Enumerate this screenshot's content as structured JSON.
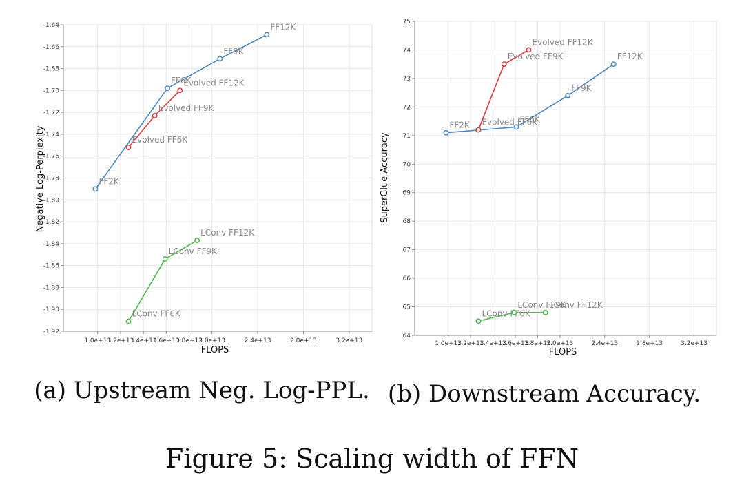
{
  "figure_caption": "Figure 5: Scaling width of FFN",
  "chart_data": [
    {
      "type": "line",
      "caption": "(a) Upstream Neg. Log-PPL.",
      "xlabel": "FLOPS",
      "ylabel": "Negative Log-Perplexity",
      "xlim": [
        7000000000000,
        34000000000000
      ],
      "ylim": [
        -1.92,
        -1.64
      ],
      "x_ticks": [
        10000000000000,
        12000000000000,
        14000000000000,
        16000000000000,
        18000000000000,
        20000000000000,
        24000000000000,
        28000000000000,
        32000000000000
      ],
      "x_tick_labels": [
        "1.0e+13",
        "1.2e+13",
        "1.4e+13",
        "1.6e+13",
        "1.8e+13",
        "2.0e+13",
        "2.4e+13",
        "2.8e+13",
        "3.2e+13"
      ],
      "y_ticks": [
        -1.64,
        -1.66,
        -1.68,
        -1.7,
        -1.72,
        -1.74,
        -1.76,
        -1.78,
        -1.8,
        -1.82,
        -1.84,
        -1.86,
        -1.88,
        -1.9,
        -1.92
      ],
      "y_tick_labels": [
        "-1.64",
        "-1.66",
        "-1.68",
        "-1.70",
        "-1.72",
        "-1.74",
        "-1.76",
        "-1.78",
        "-1.80",
        "-1.82",
        "-1.84",
        "-1.86",
        "-1.88",
        "-1.90",
        "-1.92"
      ],
      "grid": true,
      "series": [
        {
          "color": "#4a86c0",
          "points": [
            {
              "x": 9800000000000,
              "y": -1.79,
              "label": "FF2K"
            },
            {
              "x": 16100000000000,
              "y": -1.698,
              "label": "FF6K"
            },
            {
              "x": 20700000000000,
              "y": -1.671,
              "label": "FF9K"
            },
            {
              "x": 24800000000000,
              "y": -1.649,
              "label": "FF12K"
            }
          ]
        },
        {
          "color": "#d93a3a",
          "points": [
            {
              "x": 12700000000000,
              "y": -1.752,
              "label": "Evolved FF6K"
            },
            {
              "x": 15000000000000,
              "y": -1.723,
              "label": "Evolved FF9K"
            },
            {
              "x": 17200000000000,
              "y": -1.7,
              "label": "Evolved FF12K"
            }
          ]
        },
        {
          "color": "#4cb84c",
          "points": [
            {
              "x": 12700000000000,
              "y": -1.911,
              "label": "LConv FF6K"
            },
            {
              "x": 15900000000000,
              "y": -1.854,
              "label": "LConv FF9K"
            },
            {
              "x": 18700000000000,
              "y": -1.837,
              "label": "LConv FF12K"
            }
          ]
        }
      ]
    },
    {
      "type": "line",
      "caption": "(b) Downstream Accuracy.",
      "xlabel": "FLOPS",
      "ylabel": "SuperGlue Accuracy",
      "xlim": [
        7000000000000,
        34000000000000
      ],
      "ylim": [
        64,
        75
      ],
      "x_ticks": [
        10000000000000,
        12000000000000,
        14000000000000,
        16000000000000,
        18000000000000,
        20000000000000,
        24000000000000,
        28000000000000,
        32000000000000
      ],
      "x_tick_labels": [
        "1.0e+13",
        "1.2e+13",
        "1.4e+13",
        "1.6e+13",
        "1.8e+13",
        "2.0e+13",
        "2.4e+13",
        "2.8e+13",
        "3.2e+13"
      ],
      "y_ticks": [
        64,
        65,
        66,
        67,
        68,
        69,
        70,
        71,
        72,
        73,
        74,
        75
      ],
      "y_tick_labels": [
        "64",
        "65",
        "66",
        "67",
        "68",
        "69",
        "70",
        "71",
        "72",
        "73",
        "74",
        "75"
      ],
      "grid": true,
      "series": [
        {
          "color": "#4a86c0",
          "points": [
            {
              "x": 9800000000000,
              "y": 71.1,
              "label": "FF2K"
            },
            {
              "x": 16100000000000,
              "y": 71.3,
              "label": "FF6K"
            },
            {
              "x": 20700000000000,
              "y": 72.4,
              "label": "FF9K"
            },
            {
              "x": 24800000000000,
              "y": 73.5,
              "label": "FF12K"
            }
          ]
        },
        {
          "color": "#d93a3a",
          "points": [
            {
              "x": 12700000000000,
              "y": 71.2,
              "label": "Evolved FF6K"
            },
            {
              "x": 15000000000000,
              "y": 73.5,
              "label": "Evolved FF9K"
            },
            {
              "x": 17200000000000,
              "y": 74.0,
              "label": "Evolved FF12K"
            }
          ]
        },
        {
          "color": "#4cb84c",
          "points": [
            {
              "x": 12700000000000,
              "y": 64.5,
              "label": "LConv FF6K"
            },
            {
              "x": 15900000000000,
              "y": 64.8,
              "label": "LConv FF9K"
            },
            {
              "x": 18700000000000,
              "y": 64.8,
              "label": "LConv FF12K"
            }
          ]
        }
      ]
    }
  ]
}
